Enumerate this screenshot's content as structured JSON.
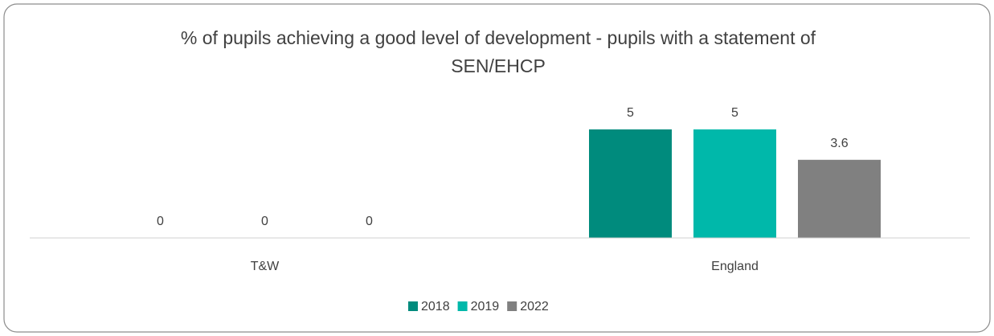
{
  "chart_data": {
    "type": "bar",
    "title": "% of pupils achieving a good level of development  - pupils with a statement of SEN/EHCP",
    "categories": [
      "T&W",
      "England"
    ],
    "series": [
      {
        "name": "2018",
        "color": "#008b7d",
        "values": [
          0,
          5
        ]
      },
      {
        "name": "2019",
        "color": "#00b8aa",
        "values": [
          0,
          5
        ]
      },
      {
        "name": "2022",
        "color": "#808080",
        "values": [
          0,
          3.6
        ]
      }
    ],
    "ylim": [
      0,
      6
    ],
    "legend": "bottom"
  }
}
